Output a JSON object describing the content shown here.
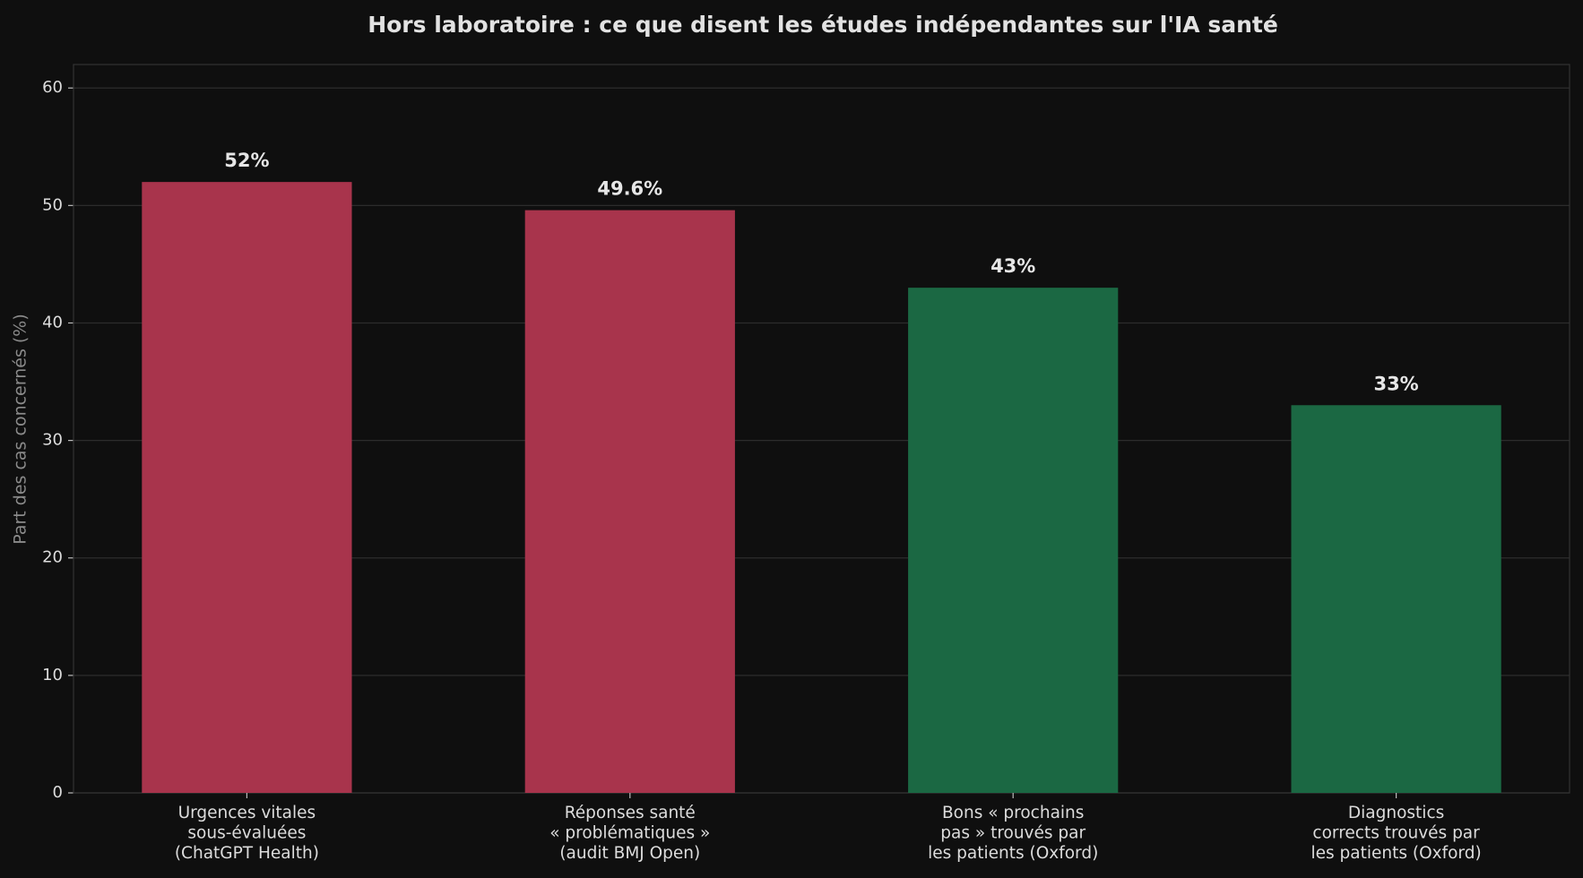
{
  "chart_data": {
    "type": "bar",
    "title": "Hors laboratoire : ce que disent les études indépendantes sur l'IA santé",
    "y_label": "Part des cas concernés (%)",
    "categories": [
      "Urgences vitales\nsous-évaluées\n(ChatGPT Health)",
      "Réponses santé\n« problématiques »\n(audit BMJ Open)",
      "Bons « prochains\npas » trouvés par\nles patients (Oxford)",
      "Diagnostics\ncorrects trouvés par\nles patients (Oxford)"
    ],
    "values": [
      52,
      49.6,
      43,
      33
    ],
    "value_labels": [
      "52%",
      "49.6%",
      "43%",
      "33%"
    ],
    "colors": [
      "#a8344c",
      "#a8344c",
      "#1b6843",
      "#1b6843"
    ],
    "ylim": [
      0,
      62
    ],
    "yticks": [
      0,
      10,
      20,
      30,
      40,
      50,
      60
    ],
    "grid": true
  }
}
